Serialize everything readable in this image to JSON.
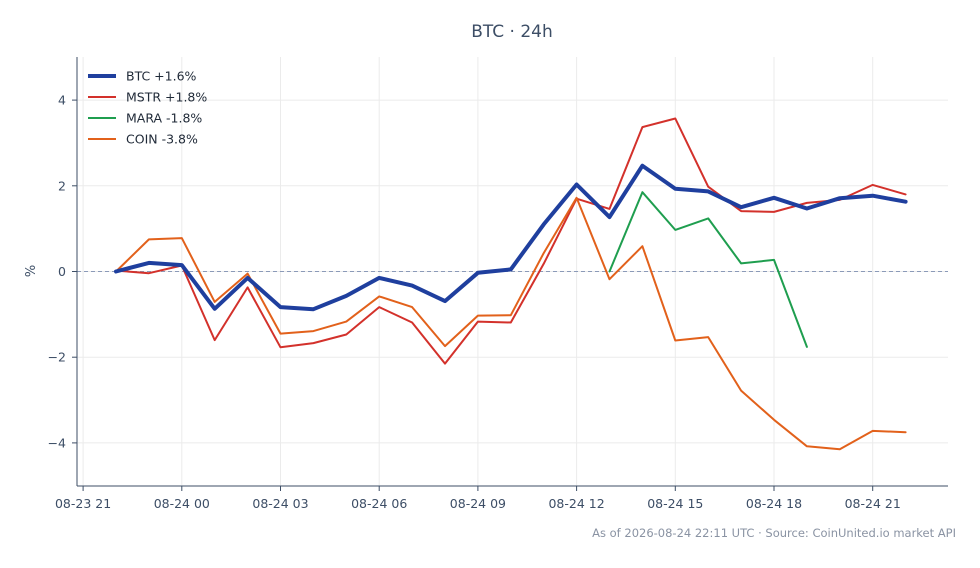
{
  "chart_data": {
    "type": "line",
    "title": "BTC · 24h",
    "xlabel": "",
    "ylabel": "%",
    "x_tick_labels": [
      "08-23 21",
      "08-24 00",
      "08-24 03",
      "08-24 06",
      "08-24 09",
      "08-24 12",
      "08-24 15",
      "08-24 18",
      "08-24 21"
    ],
    "x_hours": [
      "2026-08-23 22:00",
      "2026-08-23 23:00",
      "2026-08-24 00:00",
      "2026-08-24 01:00",
      "2026-08-24 02:00",
      "2026-08-24 03:00",
      "2026-08-24 04:00",
      "2026-08-24 05:00",
      "2026-08-24 06:00",
      "2026-08-24 07:00",
      "2026-08-24 08:00",
      "2026-08-24 09:00",
      "2026-08-24 10:00",
      "2026-08-24 11:00",
      "2026-08-24 12:00",
      "2026-08-24 13:00",
      "2026-08-24 14:00",
      "2026-08-24 15:00",
      "2026-08-24 16:00",
      "2026-08-24 17:00",
      "2026-08-24 18:00",
      "2026-08-24 19:00",
      "2026-08-24 20:00",
      "2026-08-24 21:00",
      "2026-08-24 22:00"
    ],
    "ylim": [
      -5,
      5
    ],
    "y_ticks": [
      -4,
      -2,
      0,
      2,
      4
    ],
    "y_tick_labels": [
      "−4",
      "−2",
      "0",
      "2",
      "4"
    ],
    "zero_line": true,
    "grid": true,
    "legend_position": "top-left",
    "series": [
      {
        "name": "BTC +1.6%",
        "color": "#1f3f9e",
        "width": 4,
        "values": [
          0.0,
          0.2,
          0.15,
          -0.87,
          -0.15,
          -0.83,
          -0.88,
          -0.57,
          -0.15,
          -0.33,
          -0.69,
          -0.03,
          0.05,
          1.1,
          2.03,
          1.27,
          2.47,
          1.93,
          1.87,
          1.5,
          1.72,
          1.47,
          1.71,
          1.77,
          1.63
        ]
      },
      {
        "name": "MSTR +1.8%",
        "color": "#d3312b",
        "width": 2,
        "values": [
          0.02,
          -0.04,
          0.14,
          -1.6,
          -0.37,
          -1.77,
          -1.67,
          -1.47,
          -0.83,
          -1.19,
          -2.15,
          -1.17,
          -1.19,
          0.18,
          1.7,
          1.46,
          3.37,
          3.57,
          1.98,
          1.41,
          1.39,
          1.6,
          1.67,
          2.02,
          1.8
        ]
      },
      {
        "name": "MARA -1.8%",
        "color": "#1f9e4f",
        "width": 2,
        "values": [
          null,
          null,
          null,
          null,
          null,
          null,
          null,
          null,
          null,
          null,
          null,
          null,
          null,
          null,
          null,
          0.0,
          1.85,
          0.97,
          1.24,
          0.19,
          0.27,
          -1.76,
          null,
          null,
          null
        ]
      },
      {
        "name": "COIN -3.8%",
        "color": "#e2611b",
        "width": 2,
        "values": [
          0.0,
          0.75,
          0.78,
          -0.71,
          -0.05,
          -1.45,
          -1.39,
          -1.17,
          -0.58,
          -0.83,
          -1.74,
          -1.03,
          -1.02,
          0.43,
          1.72,
          -0.18,
          0.59,
          -1.61,
          -1.53,
          -2.78,
          -3.46,
          -4.08,
          -4.15,
          -3.72,
          -3.75
        ]
      }
    ]
  },
  "footer": "As of 2026-08-24 22:11 UTC · Source: CoinUnited.io market API"
}
